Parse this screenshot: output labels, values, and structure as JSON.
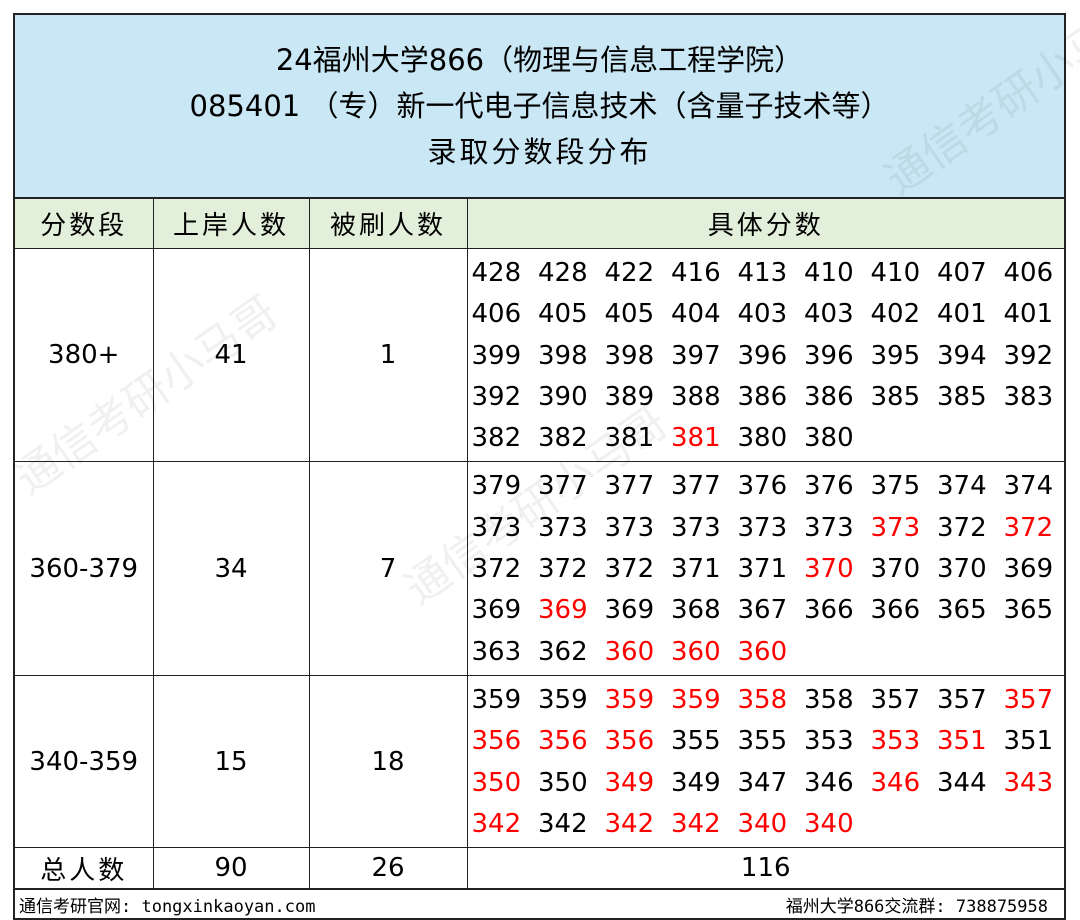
{
  "title": {
    "line1": "24福州大学866（物理与信息工程学院）",
    "line2": "085401 （专）新一代电子信息技术（含量子技术等）",
    "line3": "录取分数段分布"
  },
  "headers": [
    "分数段",
    "上岸人数",
    "被刷人数",
    "具体分数"
  ],
  "colors": {
    "title_bg": "#c9e7f4",
    "header_bg": "#e2efda",
    "rejected_score": "#ff0000"
  },
  "rows": [
    {
      "range": "380+",
      "admitted": "41",
      "rejected": "1",
      "scores": [
        "428",
        "428",
        "422",
        "416",
        "413",
        "410",
        "410",
        "407",
        "406",
        "406",
        "405",
        "405",
        "404",
        "403",
        "403",
        "402",
        "401",
        "401",
        "399",
        "398",
        "398",
        "397",
        "396",
        "396",
        "395",
        "394",
        "392",
        "392",
        "390",
        "389",
        "388",
        "386",
        "386",
        "385",
        "385",
        "383",
        "382",
        "382",
        "381",
        "381",
        "380",
        "380"
      ],
      "rejected_positions": [
        39
      ]
    },
    {
      "range": "360-379",
      "admitted": "34",
      "rejected": "7",
      "scores": [
        "379",
        "377",
        "377",
        "377",
        "376",
        "376",
        "375",
        "374",
        "374",
        "373",
        "373",
        "373",
        "373",
        "373",
        "373",
        "373",
        "372",
        "372",
        "372",
        "372",
        "372",
        "371",
        "371",
        "370",
        "370",
        "370",
        "369",
        "369",
        "369",
        "369",
        "368",
        "367",
        "366",
        "366",
        "365",
        "365",
        "363",
        "362",
        "360",
        "360",
        "360"
      ],
      "rejected_positions": [
        15,
        17,
        23,
        28,
        38,
        39,
        40
      ]
    },
    {
      "range": "340-359",
      "admitted": "15",
      "rejected": "18",
      "scores": [
        "359",
        "359",
        "359",
        "359",
        "358",
        "358",
        "357",
        "357",
        "357",
        "356",
        "356",
        "356",
        "355",
        "355",
        "353",
        "353",
        "351",
        "351",
        "350",
        "350",
        "349",
        "349",
        "347",
        "346",
        "346",
        "344",
        "343",
        "342",
        "342",
        "342",
        "342",
        "340",
        "340"
      ],
      "rejected_positions": [
        2,
        3,
        4,
        8,
        9,
        10,
        11,
        15,
        16,
        18,
        20,
        24,
        26,
        27,
        29,
        30,
        31,
        32
      ]
    }
  ],
  "total": {
    "label": "总人数",
    "admitted": "90",
    "rejected": "26",
    "all": "116"
  },
  "footer": {
    "left": "通信考研官网: tongxinkaoyan.com",
    "right": "福州大学866交流群: 738875958"
  },
  "watermark": "通信考研小马哥"
}
